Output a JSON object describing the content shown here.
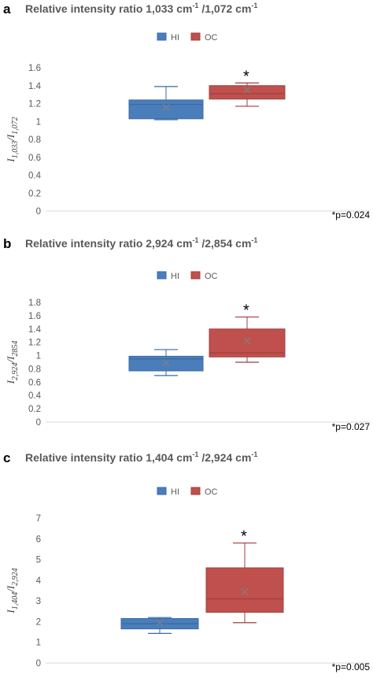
{
  "colors": {
    "HI": "#4a7ebb",
    "OC": "#c0504d",
    "HI_edge": "#3a6aa5",
    "OC_edge": "#a03f3c",
    "axis": "#d9d9d9",
    "mean_marker": "#808080"
  },
  "chart_data": [
    {
      "type": "box",
      "panel": "a",
      "title_main": "Relative intensity ratio 1,033 cm",
      "title_sup1": "-1",
      "title_mid": " /1,072 cm",
      "title_sup2": "-1",
      "ylabel_base": "I",
      "ylabel_sub1": "1,033",
      "ylabel_slash": "/I",
      "ylabel_sub2": "1,072",
      "ylim": [
        0,
        1.6
      ],
      "yticks": [
        "0",
        "0.2",
        "0.4",
        "0.6",
        "0.8",
        "1",
        "1.2",
        "1.4",
        "1.6"
      ],
      "legend": [
        "HI",
        "OC"
      ],
      "series": [
        {
          "name": "HI",
          "min": 1.02,
          "q1": 1.03,
          "median": 1.19,
          "q3": 1.24,
          "max": 1.39,
          "mean": 1.16
        },
        {
          "name": "OC",
          "min": 1.17,
          "q1": 1.25,
          "median": 1.31,
          "q3": 1.4,
          "max": 1.43,
          "mean": 1.35
        }
      ],
      "star": "*",
      "pvalue": "*p=0.024"
    },
    {
      "type": "box",
      "panel": "b",
      "title_main": "Relative intensity ratio 2,924 cm",
      "title_sup1": "-1",
      "title_mid": " /2,854 cm",
      "title_sup2": "-1",
      "ylabel_base": "I",
      "ylabel_sub1": "2,924",
      "ylabel_slash": "/I",
      "ylabel_sub2": "2854",
      "ylim": [
        0,
        1.8
      ],
      "yticks": [
        "0",
        "0.2",
        "0.4",
        "0.6",
        "0.8",
        "1",
        "1.2",
        "1.4",
        "1.6",
        "1.8"
      ],
      "legend": [
        "HI",
        "OC"
      ],
      "series": [
        {
          "name": "HI",
          "min": 0.7,
          "q1": 0.77,
          "median": 0.95,
          "q3": 0.99,
          "max": 1.09,
          "mean": 0.89
        },
        {
          "name": "OC",
          "min": 0.9,
          "q1": 0.98,
          "median": 1.04,
          "q3": 1.4,
          "max": 1.58,
          "mean": 1.22
        }
      ],
      "star": "*",
      "pvalue": "*p=0.027"
    },
    {
      "type": "box",
      "panel": "c",
      "title_main": "Relative intensity ratio 1,404 cm",
      "title_sup1": "-1",
      "title_mid": " /2,924 cm",
      "title_sup2": "-1",
      "ylabel_base": "I",
      "ylabel_sub1": "1,404",
      "ylabel_slash": "/I",
      "ylabel_sub2": "2,924",
      "ylim": [
        0,
        7
      ],
      "yticks": [
        "0",
        "1",
        "2",
        "3",
        "4",
        "5",
        "6",
        "7"
      ],
      "legend": [
        "HI",
        "OC"
      ],
      "series": [
        {
          "name": "HI",
          "min": 1.43,
          "q1": 1.65,
          "median": 1.9,
          "q3": 2.15,
          "max": 2.2,
          "mean": 1.95
        },
        {
          "name": "OC",
          "min": 1.95,
          "q1": 2.45,
          "median": 3.1,
          "q3": 4.6,
          "max": 5.8,
          "mean": 3.45
        }
      ],
      "star": "*",
      "pvalue": "*p=0.005"
    }
  ]
}
